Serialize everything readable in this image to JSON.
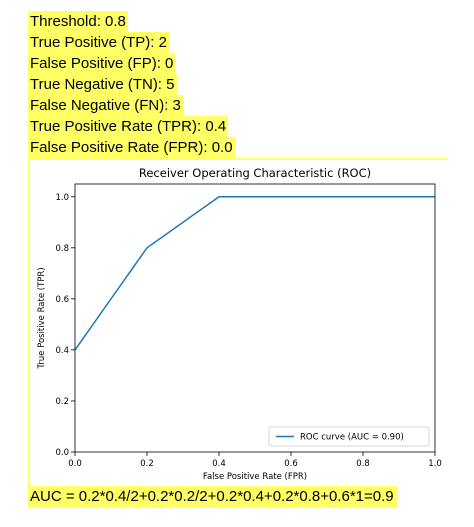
{
  "stats": [
    "Threshold: 0.8",
    "True Positive (TP): 2",
    "False Positive (FP): 0",
    "True Negative (TN): 5",
    "False Negative (FN): 3",
    "True Positive Rate (TPR): 0.4",
    "False Positive Rate (FPR): 0.0"
  ],
  "formula": "AUC = 0.2*0.4/2+0.2*0.2/2+0.2*0.4+0.2*0.8+0.6*1=0.9",
  "chart_data": {
    "type": "line",
    "title": "Receiver Operating Characteristic (ROC)",
    "xlabel": "False Positive Rate (FPR)",
    "ylabel": "True Positive Rate (TPR)",
    "xlim": [
      0.0,
      1.0
    ],
    "ylim": [
      0.0,
      1.05
    ],
    "xticks": [
      0.0,
      0.2,
      0.4,
      0.6,
      0.8,
      1.0
    ],
    "yticks": [
      0.0,
      0.2,
      0.4,
      0.6,
      0.8,
      1.0
    ],
    "grid": false,
    "legend_position": "lower-right",
    "series": [
      {
        "name": "ROC curve (AUC = 0.90)",
        "color": "#1f77b4",
        "x": [
          0.0,
          0.2,
          0.4,
          1.0
        ],
        "y": [
          0.4,
          0.8,
          1.0,
          1.0
        ]
      }
    ]
  }
}
